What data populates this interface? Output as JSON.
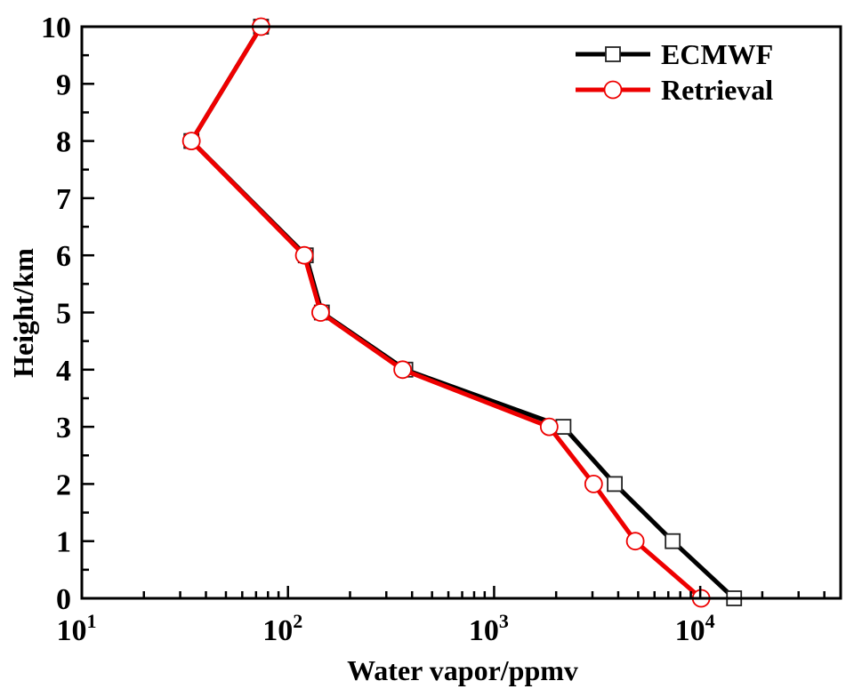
{
  "chart_data": {
    "type": "line",
    "title": "",
    "xlabel": "Water vapor/ppmv",
    "ylabel": "Height/km",
    "xscale": "log",
    "xlim": [
      10,
      48000
    ],
    "ylim": [
      0,
      10
    ],
    "x_tick_labels": [
      {
        "value": 10,
        "base": "10",
        "exp": "1"
      },
      {
        "value": 100,
        "base": "10",
        "exp": "2"
      },
      {
        "value": 1000,
        "base": "10",
        "exp": "3"
      },
      {
        "value": 10000,
        "base": "10",
        "exp": "4"
      }
    ],
    "y_ticks": [
      0,
      1,
      2,
      3,
      4,
      5,
      6,
      7,
      8,
      9,
      10
    ],
    "y_tick_labels": [
      "0",
      "1",
      "2",
      "3",
      "4",
      "5",
      "6",
      "7",
      "8",
      "9",
      "10"
    ],
    "grid": false,
    "legend_position": "top-right",
    "series": [
      {
        "name": "ECMWF",
        "color": "#000000",
        "marker": "square",
        "points": [
          {
            "x": 74,
            "y": 10
          },
          {
            "x": 34,
            "y": 8
          },
          {
            "x": 122,
            "y": 6
          },
          {
            "x": 146,
            "y": 5
          },
          {
            "x": 371,
            "y": 4
          },
          {
            "x": 2170,
            "y": 3
          },
          {
            "x": 3850,
            "y": 2
          },
          {
            "x": 7350,
            "y": 1
          },
          {
            "x": 14600,
            "y": 0
          }
        ]
      },
      {
        "name": "Retrieval",
        "color": "#ee0000",
        "marker": "circle",
        "points": [
          {
            "x": 74,
            "y": 10
          },
          {
            "x": 34,
            "y": 8
          },
          {
            "x": 120,
            "y": 6
          },
          {
            "x": 144,
            "y": 5
          },
          {
            "x": 360,
            "y": 4
          },
          {
            "x": 1850,
            "y": 3
          },
          {
            "x": 3040,
            "y": 2
          },
          {
            "x": 4840,
            "y": 1
          },
          {
            "x": 10100,
            "y": 0
          }
        ]
      }
    ]
  }
}
